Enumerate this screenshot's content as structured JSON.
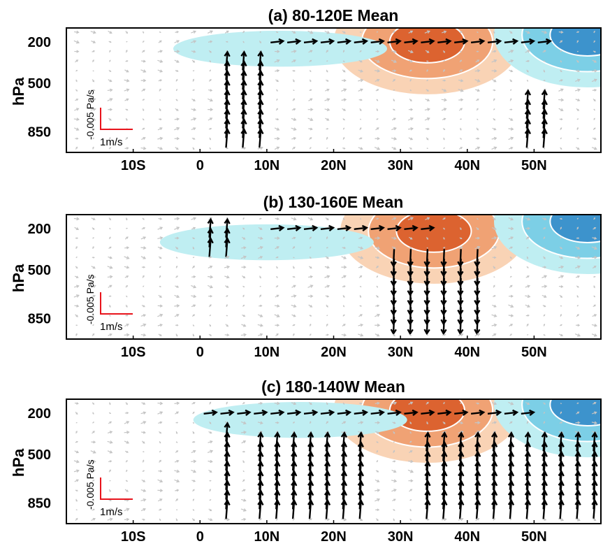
{
  "figure": {
    "ylabel": "hPa",
    "scale_legend": {
      "vertical": "-0.005 Pa/s",
      "horizontal": "1m/s"
    },
    "colors": {
      "shade_pos_light": "#f9d3b5",
      "shade_pos_mid": "#f0a274",
      "shade_pos_dark": "#dc6330",
      "shade_neg_light": "#bfeef2",
      "shade_neg_mid": "#7ccfe6",
      "shade_neg_dark": "#3d93cc",
      "contour": "#ffffff",
      "sig_vector": "#000000",
      "nonsig_vector": "#c4c4c4",
      "scale_arrow": "#e8141c"
    }
  },
  "chart_data": [
    {
      "type": "vector-cross-section",
      "title": "(a) 80-120E Mean",
      "ylabel": "hPa",
      "x_ticks": [
        "10S",
        "0",
        "10N",
        "20N",
        "30N",
        "40N",
        "50N"
      ],
      "x_tick_values": [
        -10,
        0,
        10,
        20,
        30,
        40,
        50
      ],
      "xlim": [
        -20,
        60
      ],
      "y_ticks": [
        "200",
        "500",
        "850"
      ],
      "y_tick_values": [
        200,
        500,
        850
      ],
      "ylim": [
        100,
        1000
      ],
      "shading_centers": [
        {
          "sign": "positive",
          "lat": 34,
          "p": 200,
          "levels": 3
        },
        {
          "sign": "negative",
          "lat": 58,
          "p": 150,
          "levels": 3
        },
        {
          "sign": "negative",
          "lat": 12,
          "p": 250,
          "levels": 1
        }
      ],
      "vector_regions": [
        {
          "lat_range": [
            3,
            10
          ],
          "p_range": [
            300,
            900
          ],
          "direction": "upward",
          "significant": true
        },
        {
          "lat_range": [
            10,
            52
          ],
          "p_range": [
            150,
            250
          ],
          "direction": "eastward",
          "significant": true
        },
        {
          "lat_range": [
            48,
            52
          ],
          "p_range": [
            600,
            950
          ],
          "direction": "upward",
          "significant": true
        }
      ]
    },
    {
      "type": "vector-cross-section",
      "title": "(b) 130-160E Mean",
      "ylabel": "hPa",
      "x_ticks": [
        "10S",
        "0",
        "10N",
        "20N",
        "30N",
        "40N",
        "50N"
      ],
      "x_tick_values": [
        -10,
        0,
        10,
        20,
        30,
        40,
        50
      ],
      "xlim": [
        -20,
        60
      ],
      "y_ticks": [
        "200",
        "500",
        "850"
      ],
      "y_tick_values": [
        200,
        500,
        850
      ],
      "ylim": [
        100,
        1000
      ],
      "shading_centers": [
        {
          "sign": "positive",
          "lat": 35,
          "p": 220,
          "levels": 3
        },
        {
          "sign": "negative",
          "lat": 58,
          "p": 150,
          "levels": 3
        },
        {
          "sign": "negative",
          "lat": 10,
          "p": 300,
          "levels": 1
        }
      ],
      "vector_regions": [
        {
          "lat_range": [
            27,
            42
          ],
          "p_range": [
            400,
            900
          ],
          "direction": "downward",
          "significant": true
        },
        {
          "lat_range": [
            10,
            35
          ],
          "p_range": [
            150,
            250
          ],
          "direction": "eastward",
          "significant": true
        },
        {
          "lat_range": [
            0,
            6
          ],
          "p_range": [
            150,
            350
          ],
          "direction": "upward",
          "significant": true
        }
      ]
    },
    {
      "type": "vector-cross-section",
      "title": "(c) 180-140W Mean",
      "ylabel": "hPa",
      "x_ticks": [
        "10S",
        "0",
        "10N",
        "20N",
        "30N",
        "40N",
        "50N"
      ],
      "x_tick_values": [
        -10,
        0,
        10,
        20,
        30,
        40,
        50
      ],
      "xlim": [
        -20,
        60
      ],
      "y_ticks": [
        "200",
        "500",
        "850"
      ],
      "y_tick_values": [
        200,
        500,
        850
      ],
      "ylim": [
        100,
        1000
      ],
      "shading_centers": [
        {
          "sign": "positive",
          "lat": 34,
          "p": 180,
          "levels": 3
        },
        {
          "sign": "negative",
          "lat": 58,
          "p": 140,
          "levels": 3
        },
        {
          "sign": "negative",
          "lat": 15,
          "p": 250,
          "levels": 1
        }
      ],
      "vector_regions": [
        {
          "lat_range": [
            3,
            6
          ],
          "p_range": [
            300,
            900
          ],
          "direction": "upward",
          "significant": true
        },
        {
          "lat_range": [
            8,
            25
          ],
          "p_range": [
            350,
            950
          ],
          "direction": "upward",
          "significant": true
        },
        {
          "lat_range": [
            32,
            60
          ],
          "p_range": [
            350,
            950
          ],
          "direction": "upward",
          "significant": true
        },
        {
          "lat_range": [
            0,
            50
          ],
          "p_range": [
            150,
            250
          ],
          "direction": "eastward",
          "significant": true
        }
      ]
    }
  ]
}
